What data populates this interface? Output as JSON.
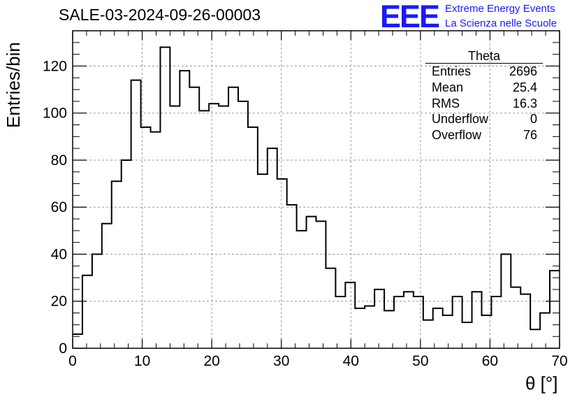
{
  "title": "SALE-03-2024-09-26-00003",
  "logo": {
    "mark": "EEE",
    "line1": "Extreme Energy Events",
    "line2": "La Scienza nelle Scuole",
    "color": "#1a1aff"
  },
  "stats": {
    "title": "Theta",
    "rows": [
      {
        "label": "Entries",
        "value": "2696"
      },
      {
        "label": "Mean",
        "value": "25.4"
      },
      {
        "label": "RMS",
        "value": "16.3"
      },
      {
        "label": "Underflow",
        "value": "0"
      },
      {
        "label": "Overflow",
        "value": "76"
      }
    ]
  },
  "chart_data": {
    "type": "histogram",
    "xlabel": "θ [°]",
    "ylabel": "Entries/bin",
    "xlim": [
      0,
      70
    ],
    "ylim": [
      0,
      135
    ],
    "bin_width": 1.4,
    "x_ticks": [
      0,
      10,
      20,
      30,
      40,
      50,
      60,
      70
    ],
    "y_ticks": [
      0,
      20,
      40,
      60,
      80,
      100,
      120
    ],
    "grid": true,
    "values": [
      6,
      31,
      40,
      53,
      71,
      80,
      114,
      94,
      92,
      128,
      103,
      118,
      111,
      101,
      104,
      103,
      111,
      105,
      94,
      74,
      85,
      72,
      61,
      50,
      56,
      54,
      34,
      22,
      28,
      17,
      18,
      25,
      16,
      22,
      24,
      22,
      12,
      17,
      14,
      22,
      11,
      24,
      14,
      22,
      40,
      26,
      23,
      8,
      15,
      33
    ]
  }
}
